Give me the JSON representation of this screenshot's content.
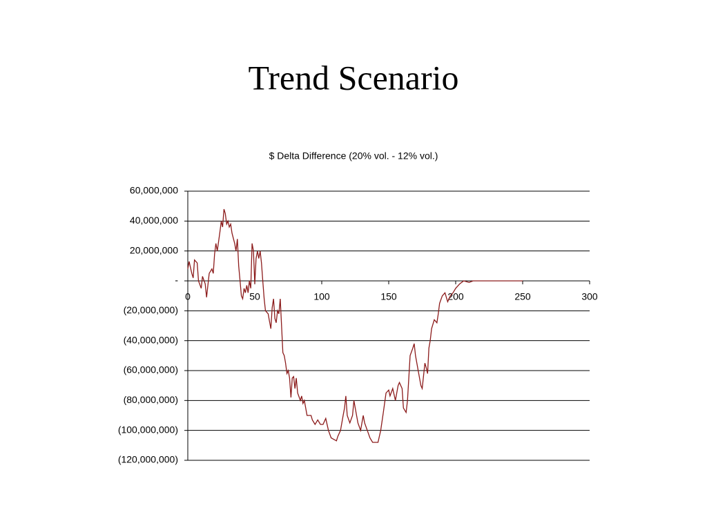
{
  "slide_title": "Trend Scenario",
  "chart_data": {
    "type": "line",
    "title": "$ Delta Difference (20% vol. - 12% vol.)",
    "x": [
      0,
      1,
      3,
      4,
      5,
      7,
      8,
      10,
      11,
      13,
      14,
      16,
      18,
      19,
      20,
      21,
      22,
      24,
      25,
      26,
      27,
      28,
      29,
      30,
      31,
      32,
      33,
      35,
      36,
      37,
      38,
      39,
      40,
      41,
      42,
      43,
      44,
      45,
      46,
      47,
      48,
      49,
      50,
      51,
      52,
      53,
      54,
      55,
      56,
      57,
      58,
      60,
      61,
      62,
      63,
      64,
      65,
      66,
      67,
      68,
      69,
      70,
      71,
      72,
      73,
      74,
      75,
      76,
      77,
      78,
      79,
      80,
      81,
      82,
      84,
      85,
      86,
      87,
      89,
      92,
      93,
      95,
      97,
      99,
      101,
      103,
      105,
      107,
      109,
      111,
      112,
      114,
      116,
      117,
      118,
      119,
      121,
      123,
      124,
      125,
      127,
      129,
      131,
      132,
      134,
      136,
      138,
      140,
      142,
      144,
      146,
      148,
      150,
      151,
      153,
      155,
      157,
      158,
      160,
      161,
      163,
      164,
      165,
      166,
      168,
      169,
      170,
      172,
      174,
      175,
      177,
      178,
      179,
      180,
      181,
      182,
      184,
      186,
      187,
      188,
      190,
      192,
      194,
      196,
      198,
      200,
      203,
      206,
      210,
      213,
      220,
      230,
      250
    ],
    "series": [
      {
        "name": "$ Delta Difference",
        "color": "#8b1a1a",
        "values": [
          8000000,
          13000000,
          5000000,
          2000000,
          14000000,
          12000000,
          0,
          -5000000,
          3000000,
          -2000000,
          -11000000,
          5000000,
          8000000,
          5000000,
          18000000,
          25000000,
          20000000,
          33000000,
          40000000,
          36000000,
          48000000,
          45000000,
          38000000,
          40000000,
          36000000,
          38000000,
          32000000,
          25000000,
          20000000,
          28000000,
          10000000,
          0,
          -10000000,
          -12000000,
          -5000000,
          -8000000,
          -3000000,
          -8000000,
          0,
          -5000000,
          25000000,
          20000000,
          -2000000,
          15000000,
          20000000,
          15000000,
          20000000,
          12000000,
          0,
          -12000000,
          -20000000,
          -22000000,
          -27000000,
          -32000000,
          -18000000,
          -12000000,
          -25000000,
          -28000000,
          -20000000,
          -22000000,
          -12000000,
          -30000000,
          -48000000,
          -50000000,
          -55000000,
          -62000000,
          -60000000,
          -65000000,
          -78000000,
          -65000000,
          -64000000,
          -72000000,
          -65000000,
          -75000000,
          -80000000,
          -77000000,
          -82000000,
          -80000000,
          -90000000,
          -90000000,
          -93000000,
          -96000000,
          -93000000,
          -96000000,
          -96000000,
          -92000000,
          -100000000,
          -105000000,
          -106000000,
          -107000000,
          -104000000,
          -100000000,
          -90000000,
          -85000000,
          -77000000,
          -90000000,
          -95000000,
          -90000000,
          -80000000,
          -85000000,
          -95000000,
          -100000000,
          -90000000,
          -95000000,
          -100000000,
          -105000000,
          -108000000,
          -108000000,
          -108000000,
          -100000000,
          -88000000,
          -75000000,
          -73000000,
          -77000000,
          -72000000,
          -80000000,
          -70000000,
          -68000000,
          -72000000,
          -85000000,
          -88000000,
          -80000000,
          -65000000,
          -50000000,
          -45000000,
          -42000000,
          -50000000,
          -60000000,
          -70000000,
          -72000000,
          -55000000,
          -58000000,
          -62000000,
          -45000000,
          -40000000,
          -32000000,
          -26000000,
          -28000000,
          -22000000,
          -15000000,
          -10000000,
          -8000000,
          -14000000,
          -10000000,
          -8000000,
          -5000000,
          -2000000,
          0,
          -1000000,
          0,
          0,
          0,
          0
        ]
      }
    ],
    "xlim": [
      0,
      300
    ],
    "xticks": [
      0,
      50,
      100,
      150,
      200,
      250,
      300
    ],
    "ylim": [
      -120000000,
      60000000
    ],
    "yticks": [
      {
        "value": -120000000,
        "label": "(120,000,000)"
      },
      {
        "value": -100000000,
        "label": "(100,000,000)"
      },
      {
        "value": -80000000,
        "label": "(80,000,000)"
      },
      {
        "value": -60000000,
        "label": "(60,000,000)"
      },
      {
        "value": -40000000,
        "label": "(40,000,000)"
      },
      {
        "value": -20000000,
        "label": "(20,000,000)"
      },
      {
        "value": 0,
        "label": "-"
      },
      {
        "value": 20000000,
        "label": "20,000,000"
      },
      {
        "value": 40000000,
        "label": "40,000,000"
      },
      {
        "value": 60000000,
        "label": "60,000,000"
      }
    ],
    "grid": true
  }
}
